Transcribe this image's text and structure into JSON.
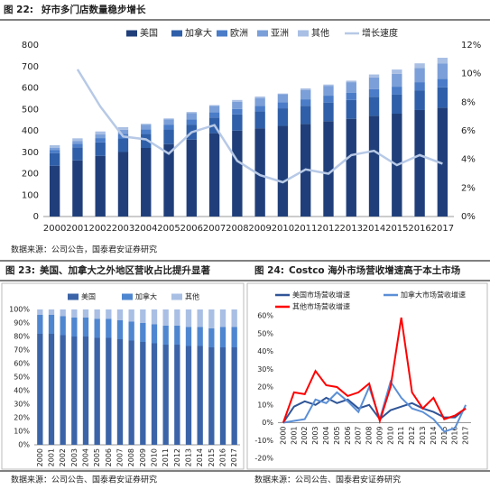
{
  "chart_data": [
    {
      "type": "bar",
      "stacked": true,
      "label": "图 22:",
      "title": "好市多门店数量稳步增长",
      "source": "数据来源：公司公告，国泰君安证券研究",
      "categories": [
        "2000",
        "2001",
        "2002",
        "2003",
        "2004",
        "2005",
        "2006",
        "2007",
        "2008",
        "2009",
        "2010",
        "2011",
        "2012",
        "2013",
        "2014",
        "2015",
        "2016",
        "2017"
      ],
      "series": [
        {
          "name": "美国",
          "color": "#203f7a",
          "values": [
            237,
            262,
            283,
            301,
            320,
            338,
            359,
            389,
            401,
            412,
            423,
            432,
            445,
            456,
            470,
            480,
            497,
            508
          ]
        },
        {
          "name": "加拿大",
          "color": "#2f5fa8",
          "values": [
            59,
            61,
            63,
            63,
            65,
            68,
            70,
            73,
            76,
            79,
            82,
            85,
            87,
            88,
            89,
            90,
            92,
            95
          ]
        },
        {
          "name": "欧洲",
          "color": "#4a7cc8",
          "values": [
            15,
            17,
            20,
            21,
            22,
            23,
            24,
            24,
            25,
            26,
            28,
            30,
            32,
            33,
            35,
            36,
            38,
            40
          ]
        },
        {
          "name": "亚洲",
          "color": "#7b9fd8",
          "values": [
            9,
            13,
            17,
            20,
            22,
            25,
            29,
            30,
            34,
            36,
            38,
            44,
            46,
            50,
            55,
            60,
            66,
            72
          ]
        },
        {
          "name": "其他",
          "color": "#a9bfe4",
          "values": [
            13,
            12,
            14,
            12,
            4,
            4,
            6,
            4,
            8,
            7,
            3,
            7,
            6,
            7,
            14,
            20,
            22,
            26
          ]
        },
        {
          "name": "增长速度",
          "color": "#b7c9e6",
          "type": "line",
          "axis": "y2",
          "values": [
            null,
            10.3,
            7.7,
            5.6,
            5.4,
            4.4,
            5.9,
            6.4,
            3.9,
            2.9,
            2.4,
            3.3,
            3.0,
            4.3,
            4.6,
            3.6,
            4.3,
            3.7
          ]
        }
      ],
      "ylim": [
        0,
        800
      ],
      "yticks": [
        0,
        100,
        200,
        300,
        400,
        500,
        600,
        700,
        800
      ],
      "y2lim": [
        0,
        12
      ],
      "y2ticks": [
        {
          "value": 0,
          "label": "0%"
        },
        {
          "value": 2,
          "label": "2%"
        },
        {
          "value": 4,
          "label": "4%"
        },
        {
          "value": 6,
          "label": "6%"
        },
        {
          "value": 8,
          "label": "8%"
        },
        {
          "value": 10,
          "label": "10%"
        },
        {
          "value": 12,
          "label": "12%"
        }
      ],
      "grid": false
    },
    {
      "type": "bar",
      "stacked": true,
      "label": "图 23:",
      "title": "美国、加拿大之外地区营收占比提升显著",
      "source": "数据来源：公司公告、国泰君安证券研究",
      "categories": [
        "2000",
        "2001",
        "2002",
        "2003",
        "2004",
        "2005",
        "2006",
        "2007",
        "2008",
        "2009",
        "2010",
        "2011",
        "2012",
        "2013",
        "2014",
        "2015",
        "2016",
        "2017"
      ],
      "series": [
        {
          "name": "美国",
          "color": "#3b64a8",
          "values": [
            82,
            82,
            81,
            80,
            80,
            79,
            79,
            78,
            77,
            76,
            75,
            74,
            74,
            73,
            73,
            72,
            72,
            72
          ]
        },
        {
          "name": "加拿大",
          "color": "#4f86d0",
          "values": [
            14,
            14,
            14,
            14,
            14,
            14,
            14,
            14,
            14,
            14,
            14,
            14,
            14,
            14,
            14,
            14,
            15,
            15
          ]
        },
        {
          "name": "其他",
          "color": "#a9bfe4",
          "values": [
            4,
            4,
            5,
            6,
            6,
            7,
            7,
            8,
            9,
            10,
            11,
            12,
            12,
            13,
            13,
            14,
            13,
            13
          ]
        }
      ],
      "ylim": [
        0,
        100
      ],
      "yticks": [
        {
          "value": 0,
          "label": "0%"
        },
        {
          "value": 10,
          "label": "10%"
        },
        {
          "value": 20,
          "label": "20%"
        },
        {
          "value": 30,
          "label": "30%"
        },
        {
          "value": 40,
          "label": "40%"
        },
        {
          "value": 50,
          "label": "50%"
        },
        {
          "value": 60,
          "label": "60%"
        },
        {
          "value": 70,
          "label": "70%"
        },
        {
          "value": 80,
          "label": "80%"
        },
        {
          "value": 90,
          "label": "90%"
        },
        {
          "value": 100,
          "label": "100%"
        }
      ],
      "grid": false
    },
    {
      "type": "line",
      "label": "图 24:",
      "title": "Costco 海外市场营收增速高于本土市场",
      "source": "数据来源：公司公告、国泰君安证券研究",
      "categories": [
        "2000",
        "2001",
        "2002",
        "2003",
        "2004",
        "2005",
        "2006",
        "2007",
        "2008",
        "2009",
        "2010",
        "2011",
        "2012",
        "2013",
        "2014",
        "2015",
        "2016",
        "2017"
      ],
      "series": [
        {
          "name": "美国市场营收增速",
          "color": "#2f5597",
          "values": [
            0,
            9,
            12,
            10,
            14,
            11,
            13,
            8,
            10,
            2,
            7,
            9,
            11,
            8,
            6,
            3,
            3,
            8
          ]
        },
        {
          "name": "加拿大市场营收增速",
          "color": "#5b8fd6",
          "values": [
            0,
            1,
            2,
            13,
            11,
            17,
            12,
            6,
            20,
            2,
            23,
            14,
            8,
            6,
            2,
            -5,
            -3,
            10
          ]
        },
        {
          "name": "其他市场营收增速",
          "color": "#ff0000",
          "values": [
            0,
            17,
            16,
            29,
            21,
            20,
            15,
            17,
            22,
            1,
            20,
            59,
            17,
            8,
            14,
            2,
            4,
            8
          ]
        }
      ],
      "ylim": [
        -20,
        60
      ],
      "yticks": [
        {
          "value": -20,
          "label": "-20%"
        },
        {
          "value": -10,
          "label": "-10%"
        },
        {
          "value": 0,
          "label": "0%"
        },
        {
          "value": 10,
          "label": "10%"
        },
        {
          "value": 20,
          "label": "20%"
        },
        {
          "value": 30,
          "label": "30%"
        },
        {
          "value": 40,
          "label": "40%"
        },
        {
          "value": 50,
          "label": "50%"
        },
        {
          "value": 60,
          "label": "60%"
        }
      ],
      "grid": false
    }
  ]
}
